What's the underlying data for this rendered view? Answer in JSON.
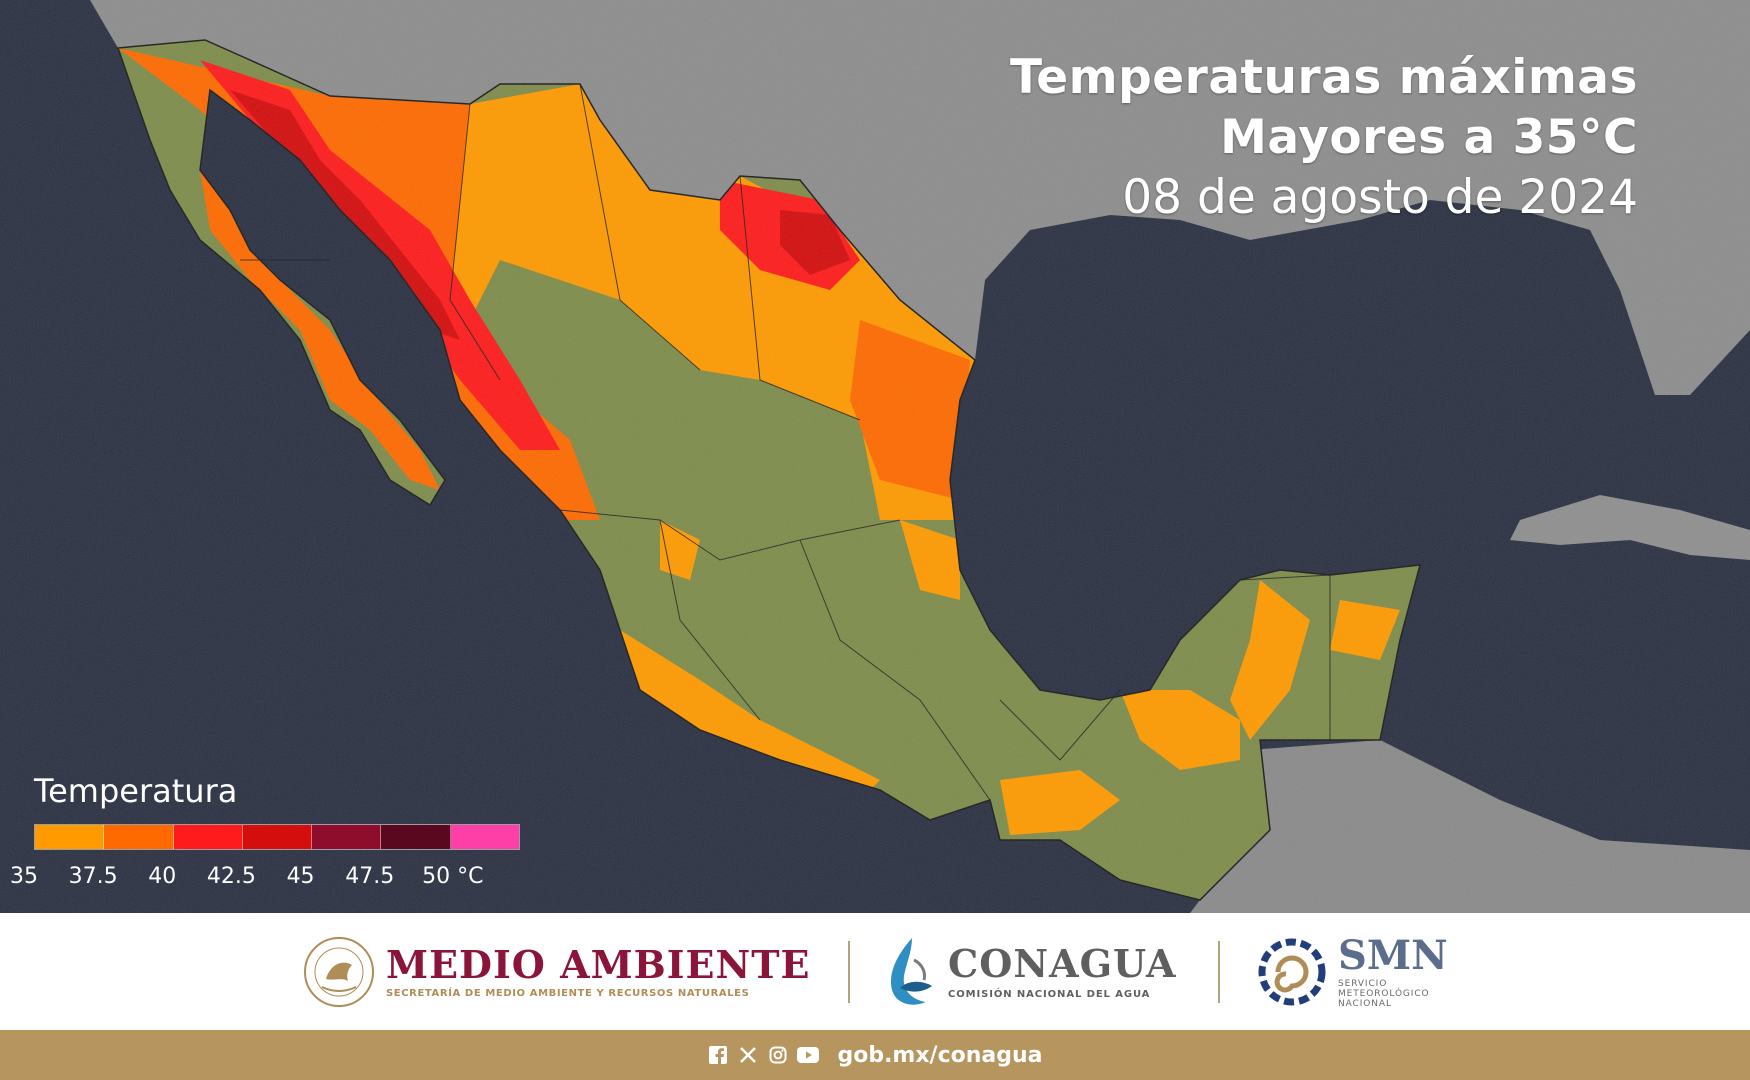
{
  "title": {
    "line1": "Temperaturas máximas",
    "line2": "Mayores a 35°C",
    "date": "08 de agosto de 2024"
  },
  "legend": {
    "title": "Temperatura",
    "colors": [
      "#ff9a00",
      "#ff6a00",
      "#ff1b1b",
      "#d40d0d",
      "#8e0c2c",
      "#5a0720",
      "#ff3fa8"
    ],
    "ticks": [
      "35",
      "37.5",
      "40",
      "42.5",
      "45",
      "47.5",
      "50 °C"
    ]
  },
  "map_colors": {
    "ocean": "#2a3042",
    "land_neighbor": "#8d8d8d",
    "mexico_land": "#7e8c4a",
    "t35": "#ff9a00",
    "t37_5": "#ff6a00",
    "t40": "#ff1b1b",
    "t42_5": "#d40d0d"
  },
  "logos": {
    "medio_ambiente": {
      "name": "MEDIO AMBIENTE",
      "sub": "SECRETARÍA DE MEDIO AMBIENTE Y RECURSOS NATURALES",
      "seal_text": "ESTADOS UNIDOS MEXICANOS"
    },
    "conagua": {
      "name": "CONAGUA",
      "sub": "COMISIÓN NACIONAL DEL AGUA"
    },
    "smn": {
      "name": "SMN",
      "sub": "SERVICIO\nMETEOROLÓGICO\nNACIONAL"
    }
  },
  "footer": {
    "url": "gob.mx/conagua",
    "social_icons": [
      "facebook-icon",
      "x-icon",
      "instagram-icon",
      "youtube-icon"
    ]
  }
}
